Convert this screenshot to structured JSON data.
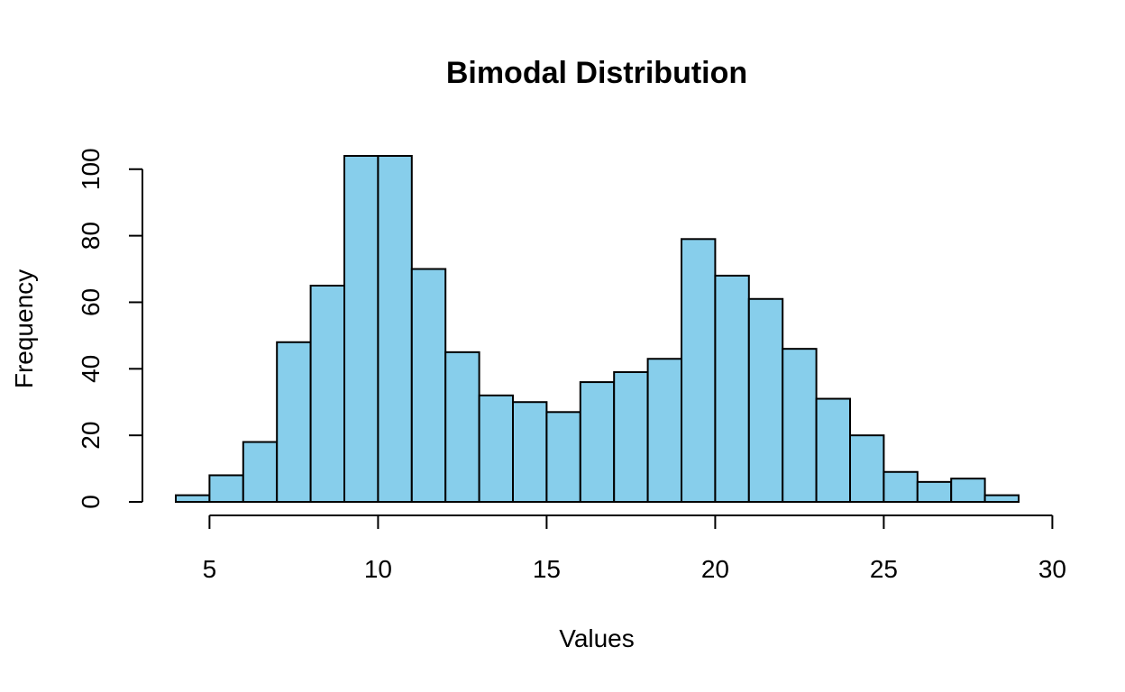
{
  "chart_data": {
    "type": "bar",
    "title": "Bimodal Distribution",
    "xlabel": "Values",
    "ylabel": "Frequency",
    "bar_color": "#87CEEB",
    "outline_color": "#000000",
    "bin_edges": [
      4,
      5,
      6,
      7,
      8,
      9,
      10,
      11,
      12,
      13,
      14,
      15,
      16,
      17,
      18,
      19,
      20,
      21,
      22,
      23,
      24,
      25,
      26,
      27,
      28,
      29
    ],
    "values": [
      2,
      8,
      18,
      48,
      65,
      104,
      104,
      70,
      45,
      32,
      30,
      27,
      36,
      39,
      43,
      79,
      68,
      61,
      46,
      31,
      20,
      9,
      6,
      7,
      2
    ],
    "xlim": [
      4,
      29
    ],
    "ylim": [
      0,
      104
    ],
    "x_ticks": [
      5,
      10,
      15,
      20,
      25,
      30
    ],
    "x_tick_labels": [
      "5",
      "10",
      "15",
      "20",
      "25",
      "30"
    ],
    "y_ticks": [
      0,
      20,
      40,
      60,
      80,
      100
    ],
    "y_tick_labels": [
      "0",
      "20",
      "40",
      "60",
      "80",
      "100"
    ],
    "grid": false
  }
}
